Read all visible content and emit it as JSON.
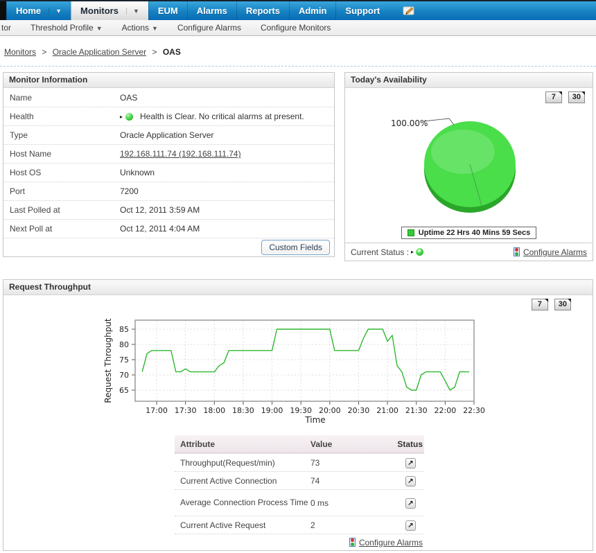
{
  "colors": {
    "nav_gradient_top": "#3aa6dc",
    "nav_gradient_bottom": "#0a6cb4",
    "selected_tab_text": "#1c2733",
    "panel_border": "#c6c6c6",
    "link": "#444444",
    "line_green": "#2eb82e",
    "pie_green": "#4ade4a",
    "pie_rim": "#2aa62a",
    "status_up_green": "#3ecf3e",
    "grid": "#dcdcdc"
  },
  "nav": {
    "tabs": [
      {
        "label": "Home",
        "dropdown": true,
        "selected": false
      },
      {
        "label": "Monitors",
        "dropdown": true,
        "selected": true
      },
      {
        "label": "EUM",
        "dropdown": false,
        "selected": false
      },
      {
        "label": "Alarms",
        "dropdown": false,
        "selected": false
      },
      {
        "label": "Reports",
        "dropdown": false,
        "selected": false
      },
      {
        "label": "Admin",
        "dropdown": false,
        "selected": false
      },
      {
        "label": "Support",
        "dropdown": false,
        "selected": false
      }
    ]
  },
  "toolbar": {
    "clipped_item": "tor",
    "items": [
      {
        "label": "Threshold Profile",
        "dropdown": true
      },
      {
        "label": "Actions",
        "dropdown": true
      },
      {
        "label": "Configure Alarms",
        "dropdown": false
      },
      {
        "label": "Configure Monitors",
        "dropdown": false
      }
    ]
  },
  "breadcrumb": {
    "links": [
      "Monitors",
      "Oracle Application Server"
    ],
    "current": "OAS",
    "separator": ">"
  },
  "monitor_info": {
    "title": "Monitor Information",
    "rows": [
      {
        "label": "Name",
        "value": "OAS"
      },
      {
        "label": "Health",
        "value": "Health is Clear. No critical alarms at present."
      },
      {
        "label": "Type",
        "value": "Oracle Application Server"
      },
      {
        "label": "Host Name",
        "value": "192.168.111.74 (192.168.111.74)"
      },
      {
        "label": "Host OS",
        "value": "Unknown"
      },
      {
        "label": "Port",
        "value": "7200"
      },
      {
        "label": "Last Polled at",
        "value": "Oct 12, 2011 3:59 AM"
      },
      {
        "label": "Next Poll at",
        "value": "Oct 12, 2011 4:04 AM"
      }
    ],
    "custom_fields_button": "Custom Fields"
  },
  "availability": {
    "title": "Today's Availability",
    "range_buttons": [
      "7",
      "30"
    ],
    "pie_label": "100.00%",
    "legend_text": "Uptime 22 Hrs 40 Mins 59 Secs",
    "current_status_label": "Current Status :",
    "configure_alarms_link": "Configure Alarms",
    "chart_data": {
      "type": "pie",
      "title": "Today's Availability",
      "slices": [
        {
          "label": "Uptime 22 Hrs 40 Mins 59 Secs",
          "value": 100.0,
          "color": "#4ade4a"
        }
      ],
      "annotation": "100.00%",
      "legend_position": "bottom"
    }
  },
  "throughput": {
    "title": "Request Throughput",
    "range_buttons": [
      "7",
      "30"
    ],
    "chart_data": {
      "type": "line",
      "title": "",
      "xlabel": "Time",
      "ylabel": "Request Throughput",
      "xticks": [
        "17:00",
        "17:30",
        "18:00",
        "18:30",
        "19:00",
        "19:30",
        "20:00",
        "20:30",
        "21:00",
        "21:30",
        "22:00",
        "22:30"
      ],
      "yticks": [
        65,
        70,
        75,
        80,
        85
      ],
      "ylim": [
        61,
        88
      ],
      "grid": true,
      "line_color": "#2eb82e",
      "x": [
        "16:45",
        "16:50",
        "16:55",
        "17:00",
        "17:05",
        "17:10",
        "17:15",
        "17:20",
        "17:25",
        "17:30",
        "17:35",
        "17:40",
        "17:45",
        "17:50",
        "17:55",
        "18:00",
        "18:05",
        "18:10",
        "18:15",
        "18:20",
        "18:25",
        "18:30",
        "18:35",
        "18:40",
        "18:45",
        "18:50",
        "18:55",
        "19:00",
        "19:05",
        "19:10",
        "19:15",
        "19:20",
        "19:25",
        "19:30",
        "19:35",
        "19:40",
        "19:45",
        "19:50",
        "19:55",
        "20:00",
        "20:05",
        "20:10",
        "20:15",
        "20:20",
        "20:25",
        "20:30",
        "20:35",
        "20:40",
        "20:45",
        "20:50",
        "20:55",
        "21:00",
        "21:05",
        "21:10",
        "21:15",
        "21:20",
        "21:25",
        "21:30",
        "21:35",
        "21:40",
        "21:45",
        "21:50",
        "21:55",
        "22:00",
        "22:05",
        "22:10",
        "22:15",
        "22:20",
        "22:25"
      ],
      "values": [
        71,
        77,
        78,
        78,
        78,
        78,
        78,
        71,
        71,
        72,
        71,
        71,
        71,
        71,
        71,
        71,
        73,
        74,
        78,
        78,
        78,
        78,
        78,
        78,
        78,
        78,
        78,
        78,
        85,
        85,
        85,
        85,
        85,
        85,
        85,
        85,
        85,
        85,
        85,
        85,
        78,
        78,
        78,
        78,
        78,
        78,
        82,
        85,
        85,
        85,
        85,
        81,
        83,
        73,
        71,
        66,
        65,
        65,
        70,
        71,
        71,
        71,
        71,
        68,
        65,
        66,
        71,
        71,
        71
      ]
    },
    "table": {
      "headers": [
        "Attribute",
        "Value",
        "Status"
      ],
      "rows": [
        {
          "attribute": "Throughput(Request/min)",
          "value": "73"
        },
        {
          "attribute": "Current Active Connection",
          "value": "74"
        },
        {
          "attribute": "Average Connection Process Time",
          "value": "0 ms"
        },
        {
          "attribute": "Current Active Request",
          "value": "2"
        }
      ],
      "configure_alarms_link": "Configure Alarms"
    }
  }
}
